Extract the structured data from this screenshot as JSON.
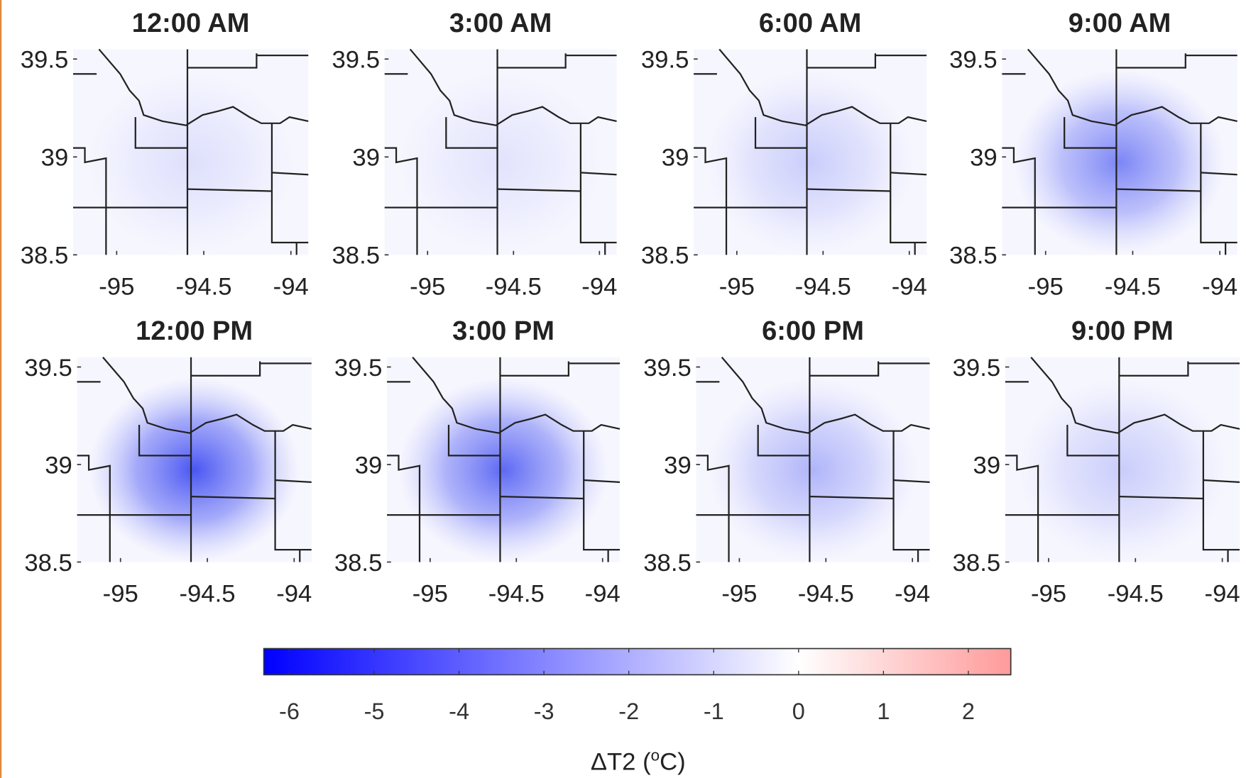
{
  "figure": {
    "type": "map",
    "panels": [
      {
        "title": "12:00 AM"
      },
      {
        "title": "3:00 AM"
      },
      {
        "title": "6:00 AM"
      },
      {
        "title": "9:00 AM"
      },
      {
        "title": "12:00 PM"
      },
      {
        "title": "3:00 PM"
      },
      {
        "title": "6:00 PM"
      },
      {
        "title": "9:00 PM"
      }
    ],
    "xlim": [
      -95.25,
      -93.9
    ],
    "ylim": [
      38.5,
      39.55
    ],
    "xticks": [
      -95,
      -94.5,
      -94
    ],
    "yticks": [
      38.5,
      39,
      39.5
    ],
    "colorbar": {
      "clim": [
        -6.3,
        2.5
      ],
      "ticks": [
        -6,
        -5,
        -4,
        -3,
        -2,
        -1,
        0,
        1,
        2
      ],
      "label": "ΔT2 (",
      "label_sup": "o",
      "label_end": "C)",
      "colors": [
        "#0000ff",
        "#ffffff",
        "#ff9a9a"
      ]
    }
  }
}
